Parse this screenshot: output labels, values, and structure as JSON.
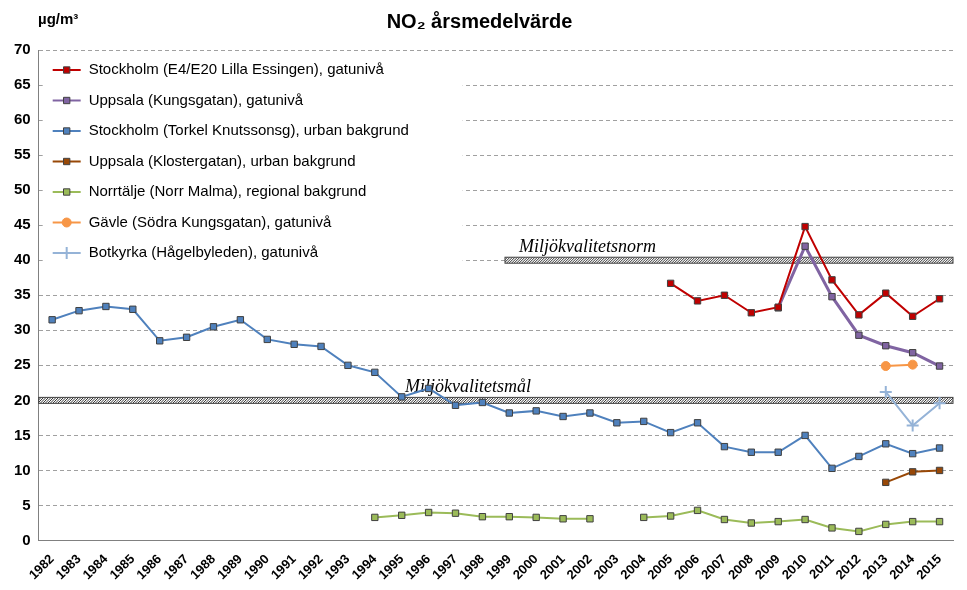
{
  "chart_data": {
    "type": "line",
    "title": "NO₂ årsmedelvärde",
    "ylabel": "µg/m³",
    "categories": [
      "1982",
      "1983",
      "1984",
      "1985",
      "1986",
      "1987",
      "1988",
      "1989",
      "1990",
      "1991",
      "1992",
      "1993",
      "1994",
      "1995",
      "1996",
      "1997",
      "1998",
      "1999",
      "2000",
      "2001",
      "2002",
      "2003",
      "2004",
      "2005",
      "2006",
      "2007",
      "2008",
      "2009",
      "2010",
      "2011",
      "2012",
      "2013",
      "2014",
      "2015"
    ],
    "series": [
      {
        "name": "Stockholm (E4/E20 Lilla Essingen), gatunivå",
        "color": "#c00000",
        "marker": "square",
        "values": [
          null,
          null,
          null,
          null,
          null,
          null,
          null,
          null,
          null,
          null,
          null,
          null,
          null,
          null,
          null,
          null,
          null,
          null,
          null,
          null,
          null,
          null,
          null,
          36.7,
          34.2,
          35.0,
          32.5,
          33.3,
          44.8,
          37.2,
          32.2,
          35.3,
          32.0,
          34.5
        ]
      },
      {
        "name": "Uppsala (Kungsgatan), gatunivå",
        "color": "#8064a2",
        "marker": "square",
        "values": [
          null,
          null,
          null,
          null,
          null,
          null,
          null,
          null,
          null,
          null,
          null,
          null,
          null,
          null,
          null,
          null,
          null,
          null,
          null,
          null,
          null,
          null,
          null,
          null,
          null,
          null,
          null,
          33.2,
          42.0,
          34.8,
          29.3,
          27.8,
          26.8,
          24.9
        ]
      },
      {
        "name": "Stockholm (Torkel Knutssonsg), urban bakgrund",
        "color": "#4f81bd",
        "marker": "square",
        "values": [
          31.5,
          32.8,
          33.4,
          33.0,
          28.5,
          29.0,
          30.5,
          31.5,
          28.7,
          28.0,
          27.7,
          25.0,
          24.0,
          20.5,
          21.7,
          19.3,
          19.7,
          18.2,
          18.5,
          17.7,
          18.2,
          16.8,
          17.0,
          15.4,
          16.8,
          13.4,
          12.6,
          12.6,
          15.0,
          10.3,
          12.0,
          13.8,
          12.4,
          13.2
        ]
      },
      {
        "name": "Uppsala (Klostergatan), urban bakgrund",
        "color": "#984807",
        "marker": "square",
        "values": [
          null,
          null,
          null,
          null,
          null,
          null,
          null,
          null,
          null,
          null,
          null,
          null,
          null,
          null,
          null,
          null,
          null,
          null,
          null,
          null,
          null,
          null,
          null,
          null,
          null,
          null,
          null,
          null,
          null,
          null,
          null,
          8.3,
          9.8,
          10.0
        ]
      },
      {
        "name": "Norrtälje (Norr Malma), regional bakgrund",
        "color": "#9bbb59",
        "marker": "square",
        "values": [
          null,
          null,
          null,
          null,
          null,
          null,
          null,
          null,
          null,
          null,
          null,
          null,
          3.3,
          3.6,
          4.0,
          3.9,
          3.4,
          3.4,
          3.3,
          3.1,
          3.1,
          null,
          3.3,
          3.5,
          4.3,
          3.0,
          2.5,
          2.7,
          3.0,
          1.8,
          1.3,
          2.3,
          2.7,
          2.7
        ]
      },
      {
        "name": "Gävle (Södra Kungsgatan), gatunivå",
        "color": "#f79646",
        "marker": "circle",
        "values": [
          null,
          null,
          null,
          null,
          null,
          null,
          null,
          null,
          null,
          null,
          null,
          null,
          null,
          null,
          null,
          null,
          null,
          null,
          null,
          null,
          null,
          null,
          null,
          null,
          null,
          null,
          null,
          null,
          null,
          null,
          null,
          24.9,
          25.1,
          null
        ]
      },
      {
        "name": "Botkyrka (Hågelbyleden), gatunivå",
        "color": "#95b3d7",
        "marker": "plus",
        "values": [
          null,
          null,
          null,
          null,
          null,
          null,
          null,
          null,
          null,
          null,
          null,
          null,
          null,
          null,
          null,
          null,
          null,
          null,
          null,
          null,
          null,
          null,
          null,
          null,
          null,
          null,
          null,
          null,
          null,
          null,
          null,
          21.2,
          16.4,
          19.6
        ]
      }
    ],
    "annotations": [
      {
        "label": "Miljökvalitetsnorm",
        "value": 40
      },
      {
        "label": "Miljökvalitetsmål",
        "value": 20
      }
    ],
    "ylim": [
      0,
      70
    ],
    "yticks": [
      0,
      5,
      10,
      15,
      20,
      25,
      30,
      35,
      40,
      45,
      50,
      55,
      60,
      65,
      70
    ],
    "grid": true,
    "legend": "upper left"
  }
}
